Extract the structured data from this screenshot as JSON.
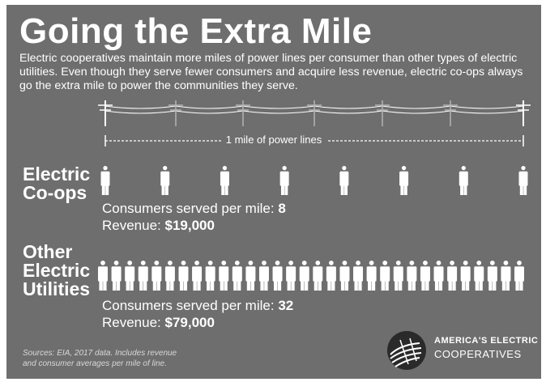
{
  "title": "Going the Extra Mile",
  "intro": "Electric cooperatives maintain more miles of power lines per consumer than other types of electric utilities. Even though they serve fewer consumers and acquire less revenue, electric co-ops always go the extra mile to power the communities they serve.",
  "mile_label": "1 mile of power lines",
  "coops": {
    "label_line1": "Electric",
    "label_line2": "Co-ops",
    "consumers_label": "Consumers served per mile: ",
    "consumers_value": "8",
    "revenue_label": "Revenue: ",
    "revenue_value": "$19,000",
    "person_count": 8
  },
  "others": {
    "label_line1": "Other",
    "label_line2": "Electric",
    "label_line3": "Utilities",
    "consumers_label": "Consumers served per mile: ",
    "consumers_value": "32",
    "revenue_label": "Revenue: ",
    "revenue_value": "$79,000",
    "person_count": 32
  },
  "sources_line1": "Sources: EIA, 2017 data. Includes revenue",
  "sources_line2": "and consumer averages per mile of line.",
  "brand": {
    "name": "AMERICA'S ELECTRIC",
    "sub": "COOPERATIVES",
    "logo": "aec-logo-icon"
  },
  "colors": {
    "background": "#6e6e6e",
    "text": "#ffffff",
    "faded_pole": "#b4b4b4"
  },
  "icons": [
    "power-pole-icon",
    "person-icon",
    "aec-logo-icon"
  ]
}
